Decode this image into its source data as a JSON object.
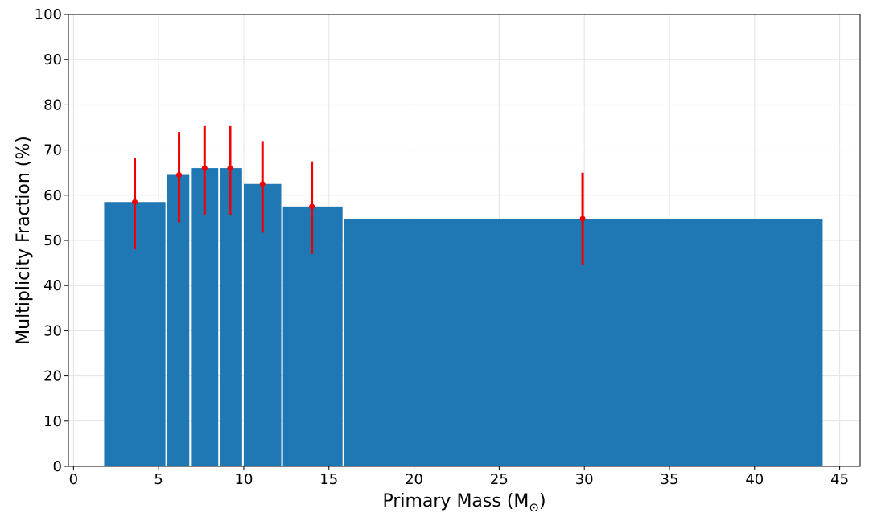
{
  "chart_data": {
    "type": "bar",
    "xlabel": "Primary Mass (M",
    "xlabel_subscript": "⊙",
    "xlabel_suffix": ")",
    "ylabel": "Multiplicity Fraction (%)",
    "xlim": [
      -0.3,
      46.2
    ],
    "ylim": [
      0,
      100
    ],
    "x_ticks": [
      0,
      5,
      10,
      15,
      20,
      25,
      30,
      35,
      40,
      45
    ],
    "y_ticks": [
      0,
      10,
      20,
      30,
      40,
      50,
      60,
      70,
      80,
      90,
      100
    ],
    "grid": true,
    "bar_color": "#1f77b4",
    "error_color": "#ee0000",
    "bins": [
      {
        "x_start": 1.8,
        "x_end": 5.4,
        "value": 58.5,
        "center": 3.6,
        "err_low": 48.0,
        "err_high": 68.3
      },
      {
        "x_start": 5.5,
        "x_end": 6.8,
        "value": 64.5,
        "center": 6.2,
        "err_low": 54.0,
        "err_high": 74.0
      },
      {
        "x_start": 6.9,
        "x_end": 8.5,
        "value": 66.0,
        "center": 7.7,
        "err_low": 55.7,
        "err_high": 75.3
      },
      {
        "x_start": 8.6,
        "x_end": 9.9,
        "value": 66.0,
        "center": 9.2,
        "err_low": 55.7,
        "err_high": 75.3
      },
      {
        "x_start": 10.0,
        "x_end": 12.2,
        "value": 62.5,
        "center": 11.1,
        "err_low": 51.7,
        "err_high": 72.0
      },
      {
        "x_start": 12.3,
        "x_end": 15.8,
        "value": 57.5,
        "center": 14.0,
        "err_low": 47.0,
        "err_high": 67.5
      },
      {
        "x_start": 15.9,
        "x_end": 44.0,
        "value": 54.8,
        "center": 29.9,
        "err_low": 44.5,
        "err_high": 65.0
      }
    ]
  }
}
